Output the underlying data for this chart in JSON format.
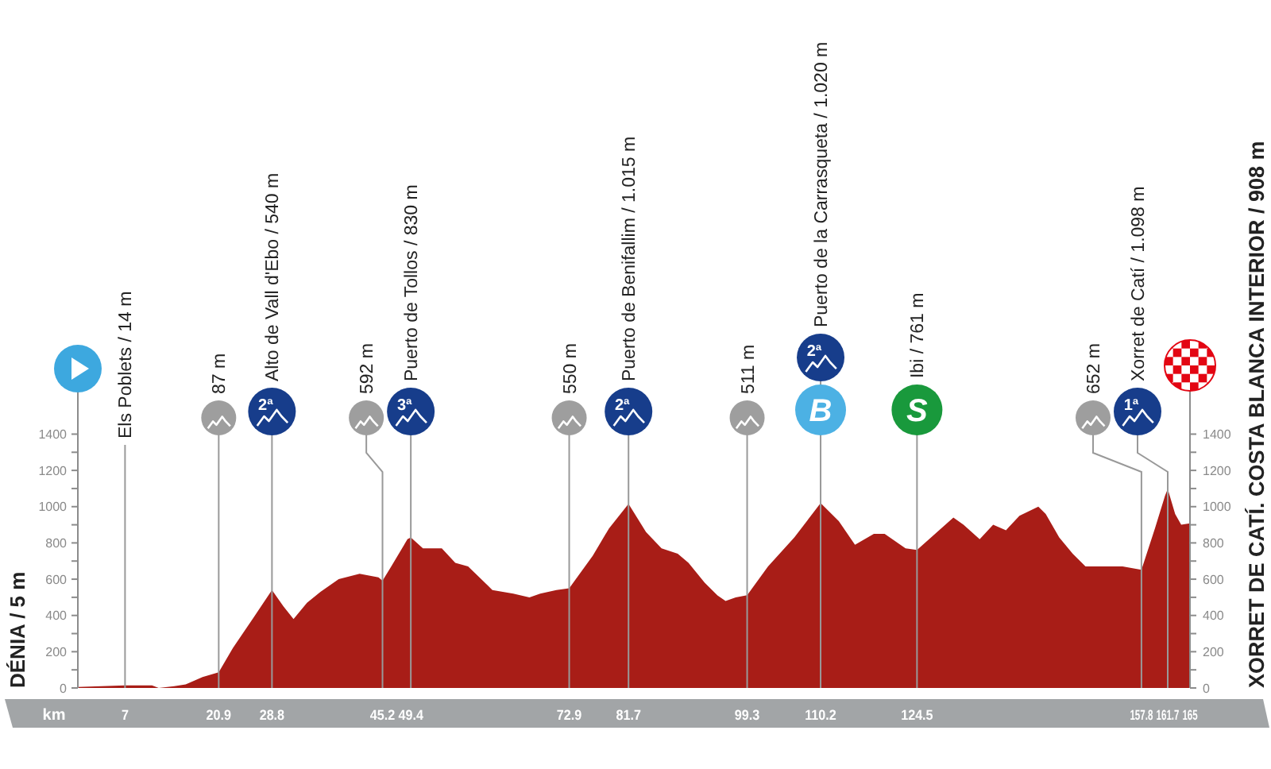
{
  "chart_data": {
    "type": "area",
    "xlabel": "km",
    "ylabel": "DÉNIA / 5 m",
    "y2label": "XORRET DE CATÍ. COSTA BLANCA INTERIOR / 908 m",
    "x": [
      0,
      7,
      11,
      12,
      14.3,
      16,
      18.5,
      20.9,
      23,
      26.1,
      28.8,
      30.5,
      32,
      34,
      36,
      38.7,
      41.8,
      44.6,
      45.2,
      46.5,
      48.9,
      49.4,
      51.2,
      54,
      56,
      57.9,
      60.7,
      61.5,
      64.6,
      67,
      68.6,
      71,
      72.9,
      76.4,
      78.8,
      81.7,
      84.3,
      86.6,
      89,
      90.6,
      93,
      94.9,
      96.1,
      97.6,
      99.3,
      102.4,
      106.3,
      110.2,
      112.9,
      115.3,
      118.1,
      119.7,
      122.8,
      124.5,
      129.9,
      131.4,
      133.8,
      135.8,
      137.7,
      139.7,
      142.5,
      143.6,
      145.6,
      147.6,
      149.5,
      151.1,
      155,
      157.8,
      159.8,
      161.3,
      161.7,
      162.8,
      163.7,
      165
    ],
    "values": [
      5,
      14,
      14,
      0,
      10,
      20,
      60,
      87,
      220,
      390,
      540,
      450,
      380,
      470,
      530,
      600,
      630,
      610,
      592,
      670,
      820,
      830,
      770,
      770,
      690,
      670,
      570,
      540,
      520,
      500,
      520,
      540,
      550,
      730,
      880,
      1015,
      860,
      770,
      740,
      690,
      580,
      510,
      480,
      500,
      511,
      670,
      830,
      1020,
      920,
      790,
      850,
      850,
      770,
      761,
      940,
      900,
      820,
      900,
      870,
      950,
      1000,
      960,
      830,
      740,
      670,
      670,
      670,
      652,
      880,
      1060,
      1098,
      960,
      900,
      908
    ],
    "color": "#a81d17",
    "xlim": [
      0,
      165
    ],
    "xticks": [
      7,
      20.9,
      28.8,
      45.2,
      49.4,
      72.9,
      81.7,
      99.3,
      110.2,
      124.5,
      157.8,
      161.7,
      165
    ],
    "ylim": [
      0,
      1700
    ],
    "yticks": [
      0,
      {
        "value": 100,
        "label": null
      },
      200,
      {
        "value": 300,
        "label": null
      },
      400,
      {
        "value": 500,
        "label": null
      },
      600,
      {
        "value": 700,
        "label": null
      },
      800,
      {
        "value": 900,
        "label": null
      },
      1000,
      {
        "value": 1100,
        "label": null
      },
      1200,
      {
        "value": 1300,
        "label": null
      },
      1400
    ],
    "y2lim": [
      0,
      1700
    ],
    "y2ticks": [
      0,
      {
        "value": 100,
        "label": null
      },
      200,
      {
        "value": 300,
        "label": null
      },
      400,
      {
        "value": 500,
        "label": null
      },
      600,
      {
        "value": 700,
        "label": null
      },
      800,
      {
        "value": 900,
        "label": null
      },
      1000,
      {
        "value": 1100,
        "label": null
      },
      1200,
      {
        "value": 1300,
        "label": null
      },
      1400
    ],
    "ref_lines": [
      {
        "axis": "x",
        "value": 7,
        "label": "Els Poblets / 14 m",
        "color": "#999999"
      },
      {
        "axis": "x",
        "value": 20.9,
        "label": "87 m",
        "color": "#999999"
      },
      {
        "axis": "x",
        "value": 28.8,
        "label": "Alto de Vall d'Ebo / 540 m",
        "color": "#999999"
      },
      {
        "axis": "x",
        "value": 45.2,
        "label": "592 m",
        "color": "#999999"
      },
      {
        "axis": "x",
        "value": 49.4,
        "label": "Puerto de Tollos / 830 m",
        "color": "#999999"
      },
      {
        "axis": "x",
        "value": 72.9,
        "label": "550 m",
        "color": "#999999"
      },
      {
        "axis": "x",
        "value": 81.7,
        "label": "Puerto de Benifallim / 1.015 m",
        "color": "#999999"
      },
      {
        "axis": "x",
        "value": 99.3,
        "label": "511 m",
        "color": "#999999"
      },
      {
        "axis": "x",
        "value": 110.2,
        "label": "Puerto de la Carrasqueta / 1.020 m",
        "color": "#999999"
      },
      {
        "axis": "x",
        "value": 124.5,
        "label": "Ibi / 761 m",
        "color": "#999999"
      },
      {
        "axis": "x",
        "value": 157.8,
        "label": "652 m",
        "color": "#999999"
      },
      {
        "axis": "x",
        "value": 161.7,
        "label": "Xorret de Catí / 1.098 m",
        "color": "#999999"
      }
    ],
    "annotations": [
      "2ª",
      "3ª",
      "2ª",
      "2ª",
      "B",
      "S",
      "1ª"
    ]
  }
}
